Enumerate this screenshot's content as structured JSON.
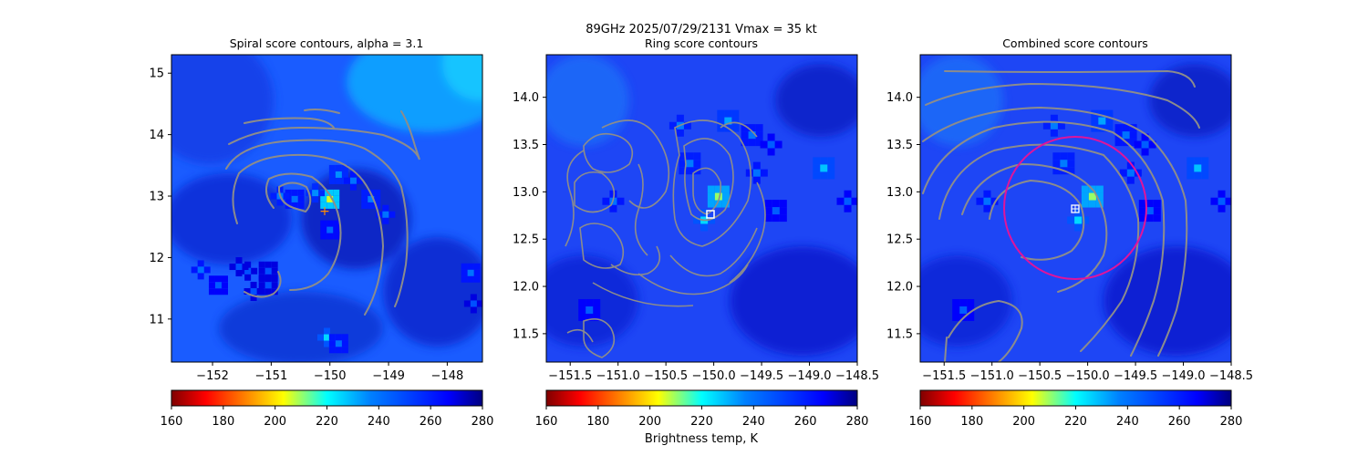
{
  "figure": {
    "suptitle_line1": "89GHz  2025/07/29/2131    Vmax = 35 kt",
    "colorbar_label": "Brightness temp, K"
  },
  "chart_data": [
    {
      "type": "heatmap",
      "title": "Spiral score contours, alpha =  3.1",
      "xlim": [
        -152.7,
        -147.4
      ],
      "ylim": [
        10.3,
        15.3
      ],
      "xticks": [
        -152,
        -151,
        -150,
        -149,
        -148
      ],
      "xtick_labels": [
        "−152",
        "−151",
        "−150",
        "−149",
        "−148"
      ],
      "yticks": [
        11,
        12,
        13,
        14,
        15
      ],
      "ytick_labels": [
        "11",
        "12",
        "13",
        "14",
        "15"
      ],
      "colorbar": {
        "range": [
          160,
          280
        ],
        "ticks": [
          "160",
          "180",
          "200",
          "220",
          "240",
          "260",
          "280"
        ],
        "colormap": "jet_r"
      },
      "center_marker": {
        "lon": -150.0,
        "lat": 12.78,
        "color": "#ff8c00",
        "symbol": "+"
      },
      "contour_color": "#8c8c8c",
      "features": [
        {
          "lon": -150.0,
          "lat": 12.95,
          "tb": 205
        },
        {
          "lon": -150.25,
          "lat": 13.05,
          "tb": 235
        },
        {
          "lon": -149.85,
          "lat": 13.35,
          "tb": 235
        },
        {
          "lon": -149.6,
          "lat": 13.25,
          "tb": 240
        },
        {
          "lon": -150.6,
          "lat": 12.95,
          "tb": 240
        },
        {
          "lon": -150.85,
          "lat": 13.0,
          "tb": 238
        },
        {
          "lon": -149.3,
          "lat": 12.95,
          "tb": 238
        },
        {
          "lon": -149.05,
          "lat": 12.7,
          "tb": 240
        },
        {
          "lon": -150.0,
          "lat": 12.45,
          "tb": 243
        },
        {
          "lon": -150.05,
          "lat": 10.7,
          "tb": 225
        },
        {
          "lon": -149.85,
          "lat": 10.6,
          "tb": 240
        },
        {
          "lon": -152.2,
          "lat": 11.8,
          "tb": 240
        },
        {
          "lon": -151.9,
          "lat": 11.55,
          "tb": 245
        },
        {
          "lon": -151.3,
          "lat": 11.45,
          "tb": 248
        },
        {
          "lon": -151.05,
          "lat": 11.55,
          "tb": 248
        },
        {
          "lon": -151.4,
          "lat": 11.78,
          "tb": 248
        },
        {
          "lon": -151.05,
          "lat": 11.78,
          "tb": 248
        },
        {
          "lon": -151.55,
          "lat": 11.85,
          "tb": 248
        },
        {
          "lon": -147.6,
          "lat": 11.75,
          "tb": 240
        },
        {
          "lon": -147.55,
          "lat": 11.25,
          "tb": 248
        }
      ]
    },
    {
      "type": "heatmap",
      "title": "Ring score contours",
      "xlim": [
        -151.75,
        -148.5
      ],
      "ylim": [
        11.2,
        14.45
      ],
      "xticks": [
        -151.5,
        -151.0,
        -150.5,
        -150.0,
        -149.5,
        -149.0,
        -148.5
      ],
      "xtick_labels": [
        "−151.5",
        "−151.0",
        "−150.5",
        "−150.0",
        "−149.5",
        "−149.0",
        "−148.5"
      ],
      "yticks": [
        11.5,
        12.0,
        12.5,
        13.0,
        13.5,
        14.0
      ],
      "ytick_labels": [
        "11.5",
        "12.0",
        "12.5",
        "13.0",
        "13.5",
        "14.0"
      ],
      "colorbar": {
        "range": [
          160,
          280
        ],
        "ticks": [
          "160",
          "180",
          "200",
          "220",
          "240",
          "260",
          "280"
        ],
        "colormap": "jet_r"
      },
      "center_marker": {
        "lon": -150.0,
        "lat": 12.76,
        "color": "#ffffff",
        "symbol": "square"
      },
      "contour_color": "#8c8c8c",
      "features": [
        {
          "lon": -149.95,
          "lat": 12.95,
          "tb": 210
        },
        {
          "lon": -150.1,
          "lat": 12.7,
          "tb": 225
        },
        {
          "lon": -149.85,
          "lat": 13.75,
          "tb": 232
        },
        {
          "lon": -150.35,
          "lat": 13.7,
          "tb": 238
        },
        {
          "lon": -149.6,
          "lat": 13.6,
          "tb": 240
        },
        {
          "lon": -149.4,
          "lat": 13.5,
          "tb": 245
        },
        {
          "lon": -148.85,
          "lat": 13.25,
          "tb": 228
        },
        {
          "lon": -149.55,
          "lat": 13.2,
          "tb": 240
        },
        {
          "lon": -150.25,
          "lat": 13.3,
          "tb": 238
        },
        {
          "lon": -151.05,
          "lat": 12.9,
          "tb": 240
        },
        {
          "lon": -151.3,
          "lat": 11.75,
          "tb": 245
        },
        {
          "lon": -148.6,
          "lat": 12.9,
          "tb": 245
        },
        {
          "lon": -149.35,
          "lat": 12.8,
          "tb": 245
        }
      ]
    },
    {
      "type": "heatmap",
      "title": "Combined score contours",
      "xlim": [
        -151.75,
        -148.5
      ],
      "ylim": [
        11.2,
        14.45
      ],
      "xticks": [
        -151.5,
        -151.0,
        -150.5,
        -150.0,
        -149.5,
        -149.0,
        -148.5
      ],
      "xtick_labels": [
        "−151.5",
        "−151.0",
        "−150.5",
        "−150.0",
        "−149.5",
        "−149.0",
        "−148.5"
      ],
      "yticks": [
        11.5,
        12.0,
        12.5,
        13.0,
        13.5,
        14.0
      ],
      "ytick_labels": [
        "11.5",
        "12.0",
        "12.5",
        "13.0",
        "13.5",
        "14.0"
      ],
      "colorbar": {
        "range": [
          160,
          280
        ],
        "ticks": [
          "160",
          "180",
          "200",
          "220",
          "240",
          "260",
          "280"
        ],
        "colormap": "jet_r"
      },
      "center_marker": {
        "lon": -150.0,
        "lat": 12.82,
        "color": "#ffffff",
        "symbol": "square-plus"
      },
      "ring": {
        "lon": -150.0,
        "lat": 12.82,
        "radius_lat": 0.75,
        "color": "#e0149b"
      },
      "contour_color": "#8c8c8c",
      "features": [
        {
          "lon": -149.95,
          "lat": 12.95,
          "tb": 210
        },
        {
          "lon": -150.1,
          "lat": 12.7,
          "tb": 225
        },
        {
          "lon": -149.85,
          "lat": 13.75,
          "tb": 232
        },
        {
          "lon": -150.35,
          "lat": 13.7,
          "tb": 238
        },
        {
          "lon": -149.6,
          "lat": 13.6,
          "tb": 240
        },
        {
          "lon": -149.4,
          "lat": 13.5,
          "tb": 245
        },
        {
          "lon": -148.85,
          "lat": 13.25,
          "tb": 228
        },
        {
          "lon": -149.55,
          "lat": 13.2,
          "tb": 240
        },
        {
          "lon": -150.25,
          "lat": 13.3,
          "tb": 238
        },
        {
          "lon": -151.05,
          "lat": 12.9,
          "tb": 240
        },
        {
          "lon": -151.3,
          "lat": 11.75,
          "tb": 245
        },
        {
          "lon": -148.6,
          "lat": 12.9,
          "tb": 245
        },
        {
          "lon": -149.35,
          "lat": 12.8,
          "tb": 245
        }
      ]
    }
  ]
}
